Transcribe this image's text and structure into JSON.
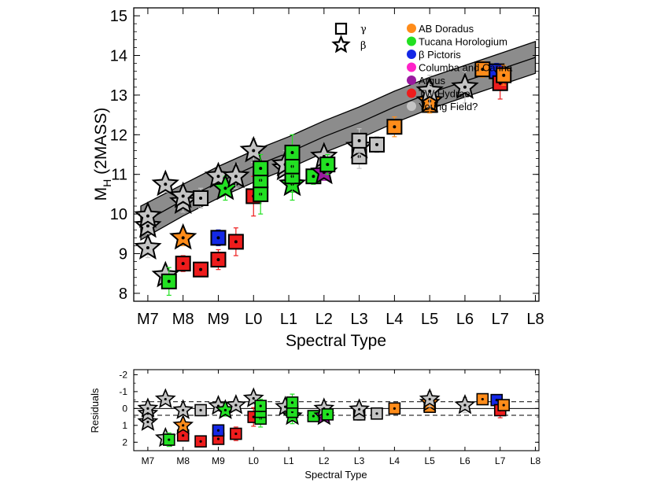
{
  "chart_data": [
    {
      "type": "scatter",
      "name": "main",
      "xlabel": "Spectral Type",
      "ylabel_main": "M",
      "ylabel_sub": "H",
      "ylabel_rest": " (2MASS)",
      "categories": [
        "M7",
        "M8",
        "M9",
        "L0",
        "L1",
        "L2",
        "L3",
        "L4",
        "L5",
        "L6",
        "L7",
        "L8"
      ],
      "x_range": [
        6.6,
        18.1
      ],
      "y_range": [
        15.2,
        7.8
      ],
      "y_ticks": [
        8,
        9,
        10,
        11,
        12,
        13,
        14,
        15
      ],
      "symbol_key": [
        {
          "shape": "square",
          "label": "γ"
        },
        {
          "shape": "star",
          "label": "β"
        }
      ],
      "legend": [
        {
          "label": "AB Doradus",
          "color": "#ff8c1a"
        },
        {
          "label": "Tucana Horologium",
          "color": "#22e022"
        },
        {
          "label": "β Pictoris",
          "color": "#1428e6"
        },
        {
          "label": "Columba and Carina",
          "color": "#ff22c8"
        },
        {
          "label": "Argus",
          "color": "#9a1aa0"
        },
        {
          "label": "TW Hydrae",
          "color": "#ee1c1c"
        },
        {
          "label": "Young Field?",
          "color": "#c4c4c4"
        }
      ],
      "field_sequence": {
        "x": [
          6.8,
          8,
          9,
          10,
          11,
          12,
          13,
          14,
          15,
          16,
          17,
          18
        ],
        "center": [
          9.75,
          10.35,
          10.8,
          11.2,
          11.55,
          11.95,
          12.3,
          12.7,
          13.05,
          13.35,
          13.65,
          13.95
        ],
        "lower": [
          9.35,
          9.95,
          10.4,
          10.8,
          11.15,
          11.55,
          11.9,
          12.3,
          12.65,
          12.95,
          13.25,
          13.55
        ],
        "upper": [
          10.2,
          10.75,
          11.2,
          11.6,
          11.95,
          12.35,
          12.7,
          13.1,
          13.45,
          13.75,
          14.05,
          14.35
        ]
      },
      "points": [
        {
          "x": 7.0,
          "y": 9.15,
          "err": 0.25,
          "shape": "star",
          "group": "Young Field?"
        },
        {
          "x": 7.0,
          "y": 9.7,
          "err": 0.2,
          "shape": "star",
          "group": "Young Field?"
        },
        {
          "x": 7.0,
          "y": 9.95,
          "err": 0.2,
          "shape": "star",
          "group": "Young Field?"
        },
        {
          "x": 7.5,
          "y": 8.45,
          "err": 0.2,
          "shape": "star",
          "group": "Young Field?"
        },
        {
          "x": 7.5,
          "y": 10.75,
          "err": 0.2,
          "shape": "star",
          "group": "Young Field?"
        },
        {
          "x": 7.6,
          "y": 8.3,
          "err": 0.35,
          "shape": "square",
          "group": "Tucana Horologium"
        },
        {
          "x": 8.0,
          "y": 8.75,
          "err": 0.2,
          "shape": "square",
          "group": "TW Hydrae"
        },
        {
          "x": 8.0,
          "y": 9.4,
          "err": 0.2,
          "shape": "star",
          "group": "AB Doradus"
        },
        {
          "x": 8.0,
          "y": 10.3,
          "err": 0.25,
          "shape": "star",
          "group": "Young Field?"
        },
        {
          "x": 8.0,
          "y": 10.45,
          "err": 0.25,
          "shape": "star",
          "group": "Young Field?"
        },
        {
          "x": 8.5,
          "y": 8.6,
          "err": 0.15,
          "shape": "square",
          "group": "TW Hydrae"
        },
        {
          "x": 8.5,
          "y": 10.4,
          "err": 0.25,
          "shape": "square",
          "group": "Young Field?"
        },
        {
          "x": 9.0,
          "y": 8.85,
          "err": 0.25,
          "shape": "square",
          "group": "TW Hydrae"
        },
        {
          "x": 9.0,
          "y": 9.4,
          "err": 0.2,
          "shape": "square",
          "group": "β Pictoris"
        },
        {
          "x": 9.0,
          "y": 10.95,
          "err": 0.25,
          "shape": "star",
          "group": "Young Field?"
        },
        {
          "x": 9.2,
          "y": 10.65,
          "err": 0.3,
          "shape": "star",
          "group": "Tucana Horologium"
        },
        {
          "x": 9.5,
          "y": 9.3,
          "err": 0.35,
          "shape": "square",
          "group": "TW Hydrae"
        },
        {
          "x": 9.5,
          "y": 10.95,
          "err": 0.3,
          "shape": "star",
          "group": "Young Field?"
        },
        {
          "x": 10.0,
          "y": 10.45,
          "err": 0.5,
          "shape": "square",
          "group": "TW Hydrae"
        },
        {
          "x": 10.0,
          "y": 11.6,
          "err": 0.3,
          "shape": "star",
          "group": "Young Field?"
        },
        {
          "x": 10.2,
          "y": 10.5,
          "err": 0.5,
          "shape": "square",
          "group": "Tucana Horologium"
        },
        {
          "x": 10.2,
          "y": 10.85,
          "err": 0.45,
          "shape": "square",
          "group": "Tucana Horologium"
        },
        {
          "x": 10.2,
          "y": 11.15,
          "err": 0.35,
          "shape": "square",
          "group": "Tucana Horologium"
        },
        {
          "x": 10.9,
          "y": 11.15,
          "err": 0.35,
          "shape": "star",
          "group": "Young Field?"
        },
        {
          "x": 10.9,
          "y": 11.25,
          "err": 0.35,
          "shape": "star",
          "group": "Young Field?"
        },
        {
          "x": 11.1,
          "y": 10.75,
          "err": 0.4,
          "shape": "star",
          "group": "Tucana Horologium"
        },
        {
          "x": 11.1,
          "y": 10.95,
          "err": 0.4,
          "shape": "square",
          "group": "Tucana Horologium"
        },
        {
          "x": 11.1,
          "y": 11.2,
          "err": 0.4,
          "shape": "square",
          "group": "Tucana Horologium"
        },
        {
          "x": 11.1,
          "y": 11.55,
          "err": 0.45,
          "shape": "square",
          "group": "Tucana Horologium"
        },
        {
          "x": 11.7,
          "y": 10.95,
          "err": 0.2,
          "shape": "square",
          "group": "Tucana Horologium"
        },
        {
          "x": 12.0,
          "y": 11.05,
          "err": 0.2,
          "shape": "star",
          "group": "Argus"
        },
        {
          "x": 12.0,
          "y": 11.45,
          "err": 0.25,
          "shape": "star",
          "group": "Young Field?"
        },
        {
          "x": 12.1,
          "y": 11.25,
          "err": 0.25,
          "shape": "square",
          "group": "Tucana Horologium"
        },
        {
          "x": 13.0,
          "y": 11.45,
          "err": 0.3,
          "shape": "square",
          "group": "Young Field?"
        },
        {
          "x": 13.0,
          "y": 11.7,
          "err": 0.3,
          "shape": "star",
          "group": "Young Field?"
        },
        {
          "x": 13.0,
          "y": 11.85,
          "err": 0.3,
          "shape": "square",
          "group": "Young Field?"
        },
        {
          "x": 13.5,
          "y": 11.75,
          "err": 0.2,
          "shape": "square",
          "group": "Young Field?"
        },
        {
          "x": 14.0,
          "y": 12.2,
          "err": 0.25,
          "shape": "square",
          "group": "AB Doradus"
        },
        {
          "x": 15.0,
          "y": 12.75,
          "err": 0.2,
          "shape": "square",
          "group": "AB Doradus"
        },
        {
          "x": 15.0,
          "y": 12.85,
          "err": 0.3,
          "shape": "star",
          "group": "AB Doradus"
        },
        {
          "x": 15.0,
          "y": 13.1,
          "err": 0.4,
          "shape": "star",
          "group": "Young Field?"
        },
        {
          "x": 16.0,
          "y": 13.2,
          "err": 0.4,
          "shape": "star",
          "group": "Young Field?"
        },
        {
          "x": 16.5,
          "y": 13.65,
          "err": 0.2,
          "shape": "square",
          "group": "AB Doradus"
        },
        {
          "x": 16.9,
          "y": 13.6,
          "err": 0.2,
          "shape": "square",
          "group": "β Pictoris"
        },
        {
          "x": 17.0,
          "y": 13.3,
          "err": 0.4,
          "shape": "square",
          "group": "TW Hydrae"
        },
        {
          "x": 17.1,
          "y": 13.5,
          "err": 0.25,
          "shape": "square",
          "group": "AB Doradus"
        }
      ]
    },
    {
      "type": "scatter",
      "name": "residuals",
      "xlabel": "Spectral Type",
      "ylabel": "Residuals",
      "categories": [
        "M7",
        "M8",
        "M9",
        "L0",
        "L1",
        "L2",
        "L3",
        "L4",
        "L5",
        "L6",
        "L7",
        "L8"
      ],
      "x_range": [
        6.6,
        18.1
      ],
      "y_range": [
        -2.3,
        2.5
      ],
      "y_ticks": [
        -2,
        -1,
        0,
        1,
        2
      ],
      "band": [
        -0.4,
        0.4
      ],
      "points": [
        {
          "x": 7.0,
          "y": 0.8,
          "err": 0.3,
          "shape": "star",
          "group": "Young Field?"
        },
        {
          "x": 7.0,
          "y": 0.3,
          "err": 0.25,
          "shape": "star",
          "group": "Young Field?"
        },
        {
          "x": 7.0,
          "y": 0.0,
          "err": 0.25,
          "shape": "star",
          "group": "Young Field?"
        },
        {
          "x": 7.5,
          "y": -0.55,
          "err": 0.25,
          "shape": "star",
          "group": "Young Field?"
        },
        {
          "x": 7.5,
          "y": 1.75,
          "err": 0.25,
          "shape": "star",
          "group": "Young Field?"
        },
        {
          "x": 7.6,
          "y": 1.85,
          "err": 0.4,
          "shape": "square",
          "group": "Tucana Horologium"
        },
        {
          "x": 8.0,
          "y": 1.6,
          "err": 0.25,
          "shape": "square",
          "group": "TW Hydrae"
        },
        {
          "x": 8.0,
          "y": 1.0,
          "err": 0.25,
          "shape": "star",
          "group": "AB Doradus"
        },
        {
          "x": 8.0,
          "y": 0.1,
          "err": 0.3,
          "shape": "star",
          "group": "Young Field?"
        },
        {
          "x": 8.5,
          "y": 1.95,
          "err": 0.2,
          "shape": "square",
          "group": "TW Hydrae"
        },
        {
          "x": 8.5,
          "y": 0.1,
          "err": 0.3,
          "shape": "square",
          "group": "Young Field?"
        },
        {
          "x": 9.0,
          "y": 1.8,
          "err": 0.3,
          "shape": "square",
          "group": "TW Hydrae"
        },
        {
          "x": 9.0,
          "y": 1.3,
          "err": 0.25,
          "shape": "square",
          "group": "β Pictoris"
        },
        {
          "x": 9.0,
          "y": -0.15,
          "err": 0.3,
          "shape": "star",
          "group": "Young Field?"
        },
        {
          "x": 9.2,
          "y": 0.1,
          "err": 0.35,
          "shape": "star",
          "group": "Tucana Horologium"
        },
        {
          "x": 9.5,
          "y": 1.5,
          "err": 0.4,
          "shape": "square",
          "group": "TW Hydrae"
        },
        {
          "x": 9.5,
          "y": -0.2,
          "err": 0.35,
          "shape": "star",
          "group": "Young Field?"
        },
        {
          "x": 10.0,
          "y": 0.5,
          "err": 0.55,
          "shape": "square",
          "group": "TW Hydrae"
        },
        {
          "x": 10.0,
          "y": -0.6,
          "err": 0.35,
          "shape": "star",
          "group": "Young Field?"
        },
        {
          "x": 10.2,
          "y": 0.6,
          "err": 0.5,
          "shape": "square",
          "group": "Tucana Horologium"
        },
        {
          "x": 10.2,
          "y": 0.2,
          "err": 0.5,
          "shape": "square",
          "group": "Tucana Horologium"
        },
        {
          "x": 10.2,
          "y": -0.15,
          "err": 0.4,
          "shape": "square",
          "group": "Tucana Horologium"
        },
        {
          "x": 10.9,
          "y": -0.1,
          "err": 0.35,
          "shape": "star",
          "group": "Young Field?"
        },
        {
          "x": 11.1,
          "y": 0.45,
          "err": 0.45,
          "shape": "star",
          "group": "Tucana Horologium"
        },
        {
          "x": 11.1,
          "y": 0.2,
          "err": 0.45,
          "shape": "square",
          "group": "Tucana Horologium"
        },
        {
          "x": 11.1,
          "y": -0.35,
          "err": 0.5,
          "shape": "square",
          "group": "Tucana Horologium"
        },
        {
          "x": 11.7,
          "y": 0.45,
          "err": 0.25,
          "shape": "square",
          "group": "Tucana Horologium"
        },
        {
          "x": 12.0,
          "y": 0.45,
          "err": 0.25,
          "shape": "star",
          "group": "Argus"
        },
        {
          "x": 12.0,
          "y": 0.0,
          "err": 0.3,
          "shape": "star",
          "group": "Young Field?"
        },
        {
          "x": 12.1,
          "y": 0.35,
          "err": 0.3,
          "shape": "square",
          "group": "Tucana Horologium"
        },
        {
          "x": 13.0,
          "y": 0.35,
          "err": 0.35,
          "shape": "square",
          "group": "Young Field?"
        },
        {
          "x": 13.0,
          "y": 0.05,
          "err": 0.35,
          "shape": "star",
          "group": "Young Field?"
        },
        {
          "x": 13.5,
          "y": 0.3,
          "err": 0.25,
          "shape": "square",
          "group": "Young Field?"
        },
        {
          "x": 14.0,
          "y": 0.0,
          "err": 0.3,
          "shape": "square",
          "group": "AB Doradus"
        },
        {
          "x": 15.0,
          "y": -0.1,
          "err": 0.25,
          "shape": "square",
          "group": "AB Doradus"
        },
        {
          "x": 15.0,
          "y": -0.35,
          "err": 0.35,
          "shape": "star",
          "group": "AB Doradus"
        },
        {
          "x": 15.0,
          "y": -0.55,
          "err": 0.45,
          "shape": "star",
          "group": "Young Field?"
        },
        {
          "x": 16.0,
          "y": -0.2,
          "err": 0.45,
          "shape": "star",
          "group": "Young Field?"
        },
        {
          "x": 16.5,
          "y": -0.55,
          "err": 0.25,
          "shape": "square",
          "group": "AB Doradus"
        },
        {
          "x": 16.9,
          "y": -0.5,
          "err": 0.25,
          "shape": "square",
          "group": "β Pictoris"
        },
        {
          "x": 17.0,
          "y": 0.1,
          "err": 0.45,
          "shape": "square",
          "group": "TW Hydrae"
        },
        {
          "x": 17.1,
          "y": -0.2,
          "err": 0.3,
          "shape": "square",
          "group": "AB Doradus"
        }
      ]
    }
  ]
}
